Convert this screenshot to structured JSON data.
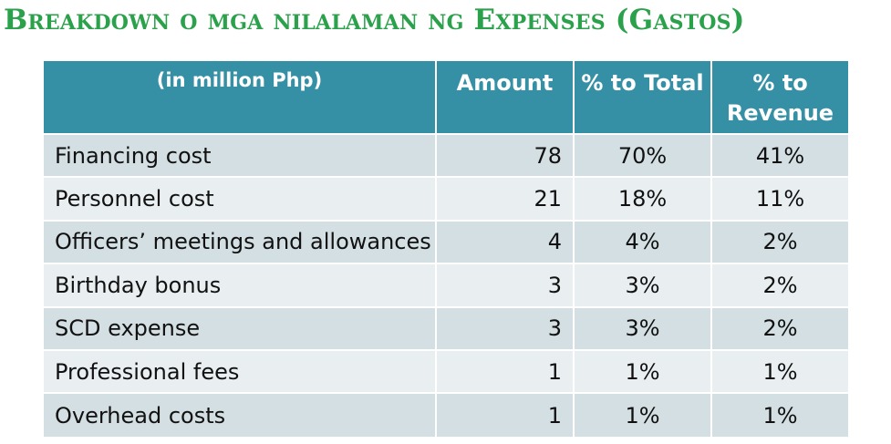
{
  "title": "Breakdown o mga nilalaman ng Expenses (Gastos)",
  "table": {
    "headers": [
      "(in million Php)",
      "Amount",
      "% to Total",
      "% to Revenue"
    ],
    "rows": [
      {
        "label": "Financing cost",
        "amount": "78",
        "pct_total": "70%",
        "pct_revenue": "41%"
      },
      {
        "label": "Personnel cost",
        "amount": "21",
        "pct_total": "18%",
        "pct_revenue": "11%"
      },
      {
        "label": "Officers’ meetings and allowances",
        "amount": "4",
        "pct_total": "4%",
        "pct_revenue": "2%"
      },
      {
        "label": "Birthday bonus",
        "amount": "3",
        "pct_total": "3%",
        "pct_revenue": "2%"
      },
      {
        "label": "SCD expense",
        "amount": "3",
        "pct_total": "3%",
        "pct_revenue": "2%"
      },
      {
        "label": "Professional fees",
        "amount": "1",
        "pct_total": "1%",
        "pct_revenue": "1%"
      },
      {
        "label": "Overhead costs",
        "amount": "1",
        "pct_total": "1%",
        "pct_revenue": "1%"
      }
    ]
  },
  "colors": {
    "title": "#2aa14a",
    "header_bg": "#3690a5",
    "row_dark": "#d3dfe3",
    "row_light": "#e9eff1"
  }
}
